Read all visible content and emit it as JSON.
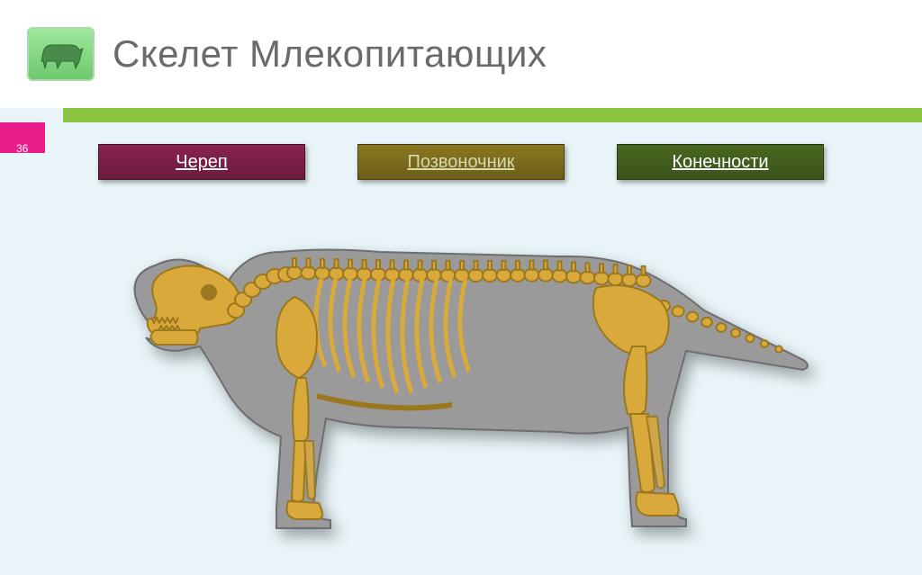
{
  "header": {
    "title": "Скелет Млекопитающих",
    "icon_name": "dog-silhouette-icon"
  },
  "slide_number": "36",
  "nav_buttons": [
    {
      "label": "Череп",
      "name": "skull-button"
    },
    {
      "label": "Позвоночник",
      "name": "spine-button"
    },
    {
      "label": "Конечности",
      "name": "limbs-button"
    }
  ],
  "diagram": {
    "type": "infographic",
    "subject": "mammal-skeleton-dog",
    "body_silhouette_color": "#9a9a9a",
    "body_stroke_color": "#6e6e6e",
    "bone_fill_color": "#d9a93b",
    "bone_stroke_color": "#9b7820",
    "rib_count": 11,
    "background_color": "#e8f4f8",
    "aspect_ratio": "2.0"
  },
  "theme": {
    "header_bg": "#ffffff",
    "page_bg": "#e8f4f8",
    "accent_bar": "#8bc53f",
    "accent_tab": "#e91e8c",
    "title_color": "#6a6a6a",
    "button_colors": {
      "skull": "#7a1f46",
      "spine": "#7a6a1c",
      "limbs": "#425e1c"
    },
    "title_fontsize": 42,
    "button_fontsize": 20
  }
}
